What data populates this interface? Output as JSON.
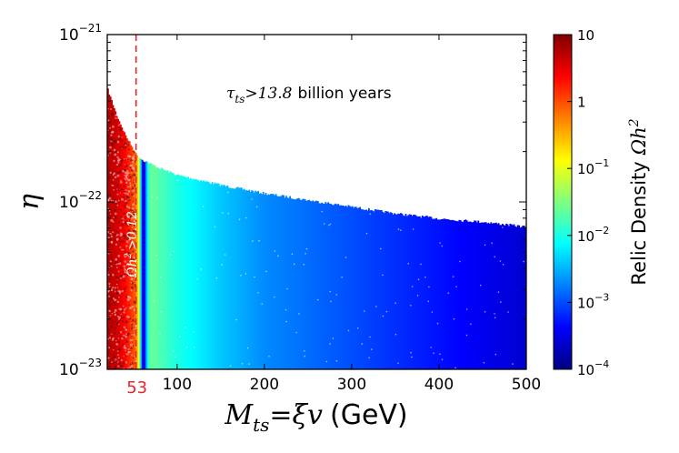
{
  "chart_data": {
    "type": "scatter",
    "xlabel": "M_ts = ξv (GeV)",
    "xlabel_parts": {
      "symbol": "M",
      "subscript": "ts",
      "eq": "=",
      "rhs": "ξv",
      "unit": "(GeV)"
    },
    "ylabel": "η",
    "xlim": [
      20,
      500
    ],
    "ylim_log10": [
      -23,
      -21
    ],
    "x_ticks": [
      100,
      200,
      300,
      400,
      500
    ],
    "x_tick_labels": [
      "100",
      "200",
      "300",
      "400",
      "500"
    ],
    "y_ticks_log10": [
      -23,
      -22,
      -21
    ],
    "y_tick_labels": [
      {
        "base": "10",
        "exp": "−23"
      },
      {
        "base": "10",
        "exp": "−22"
      },
      {
        "base": "10",
        "exp": "−21"
      }
    ],
    "reference_line": {
      "x": 53,
      "label": "53",
      "style": "dashed",
      "color": "#e8242a"
    },
    "annotations": {
      "lifetime": {
        "symbol": "τ",
        "subscript": "ts",
        "relation": ">13.8",
        "text": "billion years"
      },
      "excluded": {
        "symbol": "Ωh",
        "sup": "2",
        "relation": ">0.12"
      }
    },
    "boundary_curve": {
      "description": "upper edge of allowed region (lifetime > 13.8 billion years)",
      "x": [
        20,
        30,
        40,
        53,
        60,
        80,
        100,
        150,
        200,
        250,
        300,
        350,
        400,
        450,
        500
      ],
      "log10_eta": [
        -21.33,
        -21.48,
        -21.6,
        -21.72,
        -21.75,
        -21.8,
        -21.84,
        -21.9,
        -21.95,
        -21.99,
        -22.03,
        -22.07,
        -22.1,
        -22.12,
        -22.15
      ]
    },
    "relic_density_profile": {
      "description": "relic density vs mass (colour of points, approx. independent of eta)",
      "x": [
        20,
        30,
        40,
        50,
        53,
        56,
        58,
        60,
        62,
        64,
        66,
        70,
        80,
        100,
        150,
        200,
        300,
        400,
        500
      ],
      "log10_omega_h2": [
        0.7,
        0.6,
        0.35,
        0.0,
        -0.3,
        -1.2,
        -2.4,
        -3.7,
        -3.4,
        -2.6,
        -1.9,
        -1.6,
        -1.75,
        -2.0,
        -2.4,
        -2.7,
        -3.0,
        -3.3,
        -3.6
      ]
    },
    "colorbar": {
      "label": "Relic Density",
      "symbol": "Ωh",
      "sup": "2",
      "scale": "log",
      "range_log10": [
        -4,
        1
      ],
      "tick_labels": [
        {
          "base": "10",
          "exp": ""
        },
        {
          "base": "1",
          "exp": ""
        },
        {
          "base": "10",
          "exp": "−1"
        },
        {
          "base": "10",
          "exp": "−2"
        },
        {
          "base": "10",
          "exp": "−3"
        },
        {
          "base": "10",
          "exp": "−4"
        }
      ],
      "colors": [
        "#00007f",
        "#0000ff",
        "#0080ff",
        "#00ffff",
        "#80ff80",
        "#ffff00",
        "#ff8000",
        "#ff0000",
        "#7f0000"
      ]
    }
  }
}
